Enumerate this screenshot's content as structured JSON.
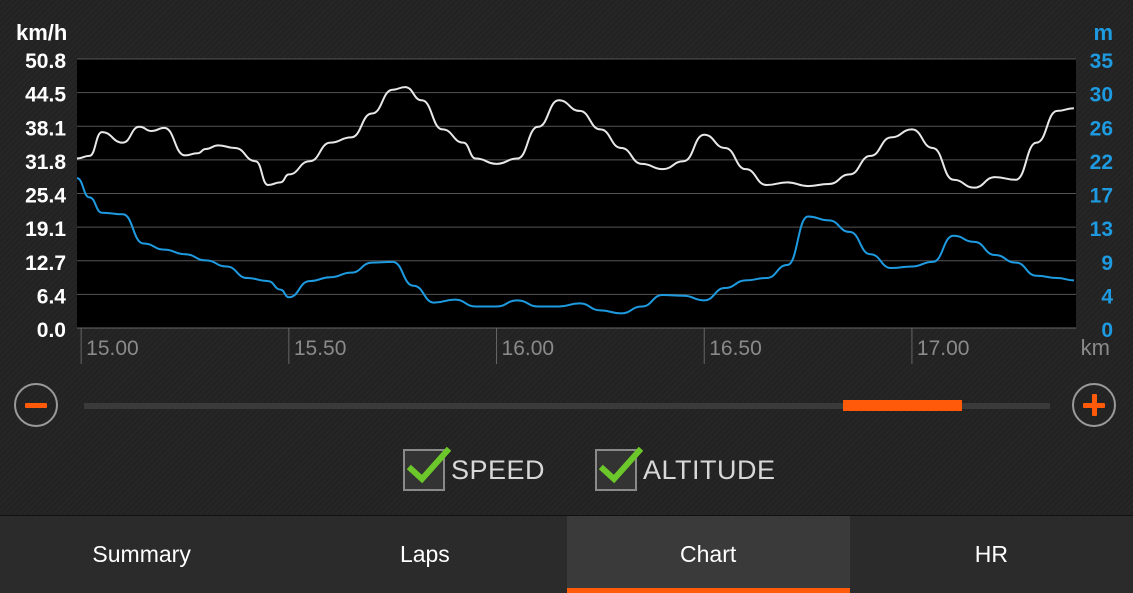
{
  "chart_data": {
    "type": "line",
    "x_unit": "km",
    "xlim": [
      14.99,
      17.99
    ],
    "x_ticks": [
      "15.00",
      "15.50",
      "16.00",
      "16.50",
      "17.00"
    ],
    "x_tick_values": [
      15.0,
      15.5,
      16.0,
      16.5,
      17.0
    ],
    "left_axis": {
      "unit": "km/h",
      "ticks": [
        "50.8",
        "44.5",
        "38.1",
        "31.8",
        "25.4",
        "19.1",
        "12.7",
        "6.4",
        "0.0"
      ],
      "ylim": [
        0,
        50.8
      ]
    },
    "right_axis": {
      "unit": "m",
      "ticks": [
        "35",
        "30",
        "26",
        "22",
        "17",
        "13",
        "9",
        "4",
        "0"
      ],
      "ylim": [
        0,
        35
      ]
    },
    "series": [
      {
        "name": "SPEED",
        "axis": "left",
        "color": "#e8e8e8",
        "x": [
          14.99,
          15.02,
          15.05,
          15.1,
          15.14,
          15.17,
          15.2,
          15.25,
          15.28,
          15.3,
          15.33,
          15.37,
          15.42,
          15.45,
          15.48,
          15.5,
          15.55,
          15.6,
          15.65,
          15.7,
          15.75,
          15.78,
          15.82,
          15.87,
          15.92,
          15.95,
          16.0,
          16.05,
          16.1,
          16.15,
          16.2,
          16.25,
          16.3,
          16.35,
          16.4,
          16.45,
          16.5,
          16.55,
          16.6,
          16.65,
          16.7,
          16.75,
          16.8,
          16.85,
          16.9,
          16.95,
          17.0,
          17.05,
          17.1,
          17.15,
          17.2,
          17.25,
          17.3,
          17.35,
          17.39
        ],
        "values": [
          32.0,
          32.5,
          37.0,
          35.0,
          38.0,
          37.2,
          37.8,
          32.6,
          33.0,
          33.8,
          34.5,
          34.0,
          31.5,
          27.0,
          27.5,
          29.0,
          31.5,
          35.0,
          36.0,
          40.5,
          45.0,
          45.5,
          43.0,
          37.5,
          35.0,
          32.0,
          31.0,
          32.0,
          38.0,
          43.0,
          41.0,
          37.5,
          34.0,
          31.0,
          30.0,
          31.5,
          36.5,
          34.0,
          30.0,
          27.0,
          27.5,
          26.8,
          27.2,
          29.0,
          32.5,
          36.0,
          37.5,
          34.0,
          28.0,
          26.5,
          28.5,
          28.0,
          35.0,
          41.0,
          41.5
        ]
      },
      {
        "name": "ALTITUDE",
        "axis": "right",
        "color": "#1e9be0",
        "x": [
          14.99,
          15.02,
          15.05,
          15.1,
          15.15,
          15.2,
          15.25,
          15.3,
          15.35,
          15.4,
          15.45,
          15.48,
          15.5,
          15.55,
          15.6,
          15.65,
          15.7,
          15.75,
          15.8,
          15.85,
          15.9,
          15.95,
          16.0,
          16.05,
          16.1,
          16.15,
          16.2,
          16.25,
          16.3,
          16.35,
          16.4,
          16.45,
          16.5,
          16.55,
          16.6,
          16.65,
          16.7,
          16.75,
          16.8,
          16.85,
          16.9,
          16.95,
          17.0,
          17.05,
          17.1,
          17.15,
          17.2,
          17.25,
          17.3,
          17.35,
          17.39
        ],
        "values": [
          19.5,
          17.0,
          15.0,
          14.8,
          11.0,
          10.2,
          9.6,
          8.8,
          8.0,
          6.5,
          6.1,
          5.0,
          4.0,
          6.1,
          6.6,
          7.2,
          8.5,
          8.6,
          5.5,
          3.3,
          3.7,
          2.8,
          2.8,
          3.6,
          2.8,
          2.8,
          3.2,
          2.3,
          1.9,
          2.8,
          4.3,
          4.2,
          3.6,
          5.2,
          6.2,
          6.5,
          8.2,
          14.5,
          14.0,
          12.5,
          9.6,
          7.8,
          8.0,
          8.6,
          12.0,
          11.2,
          9.5,
          8.5,
          6.8,
          6.5,
          6.2
        ]
      }
    ],
    "grid": true
  },
  "controls": {
    "zoom_position": 0.7855,
    "zoom_width": 0.1232
  },
  "toggles": [
    {
      "label": "SPEED",
      "checked": true
    },
    {
      "label": "ALTITUDE",
      "checked": true
    }
  ],
  "tabs": [
    {
      "label": "Summary",
      "active": false
    },
    {
      "label": "Laps",
      "active": false
    },
    {
      "label": "Chart",
      "active": true
    },
    {
      "label": "HR",
      "active": false
    }
  ],
  "colors": {
    "accent": "#ff5a0a",
    "altitude": "#1e9be0",
    "speed": "#e8e8e8",
    "check": "#6cc82a"
  }
}
